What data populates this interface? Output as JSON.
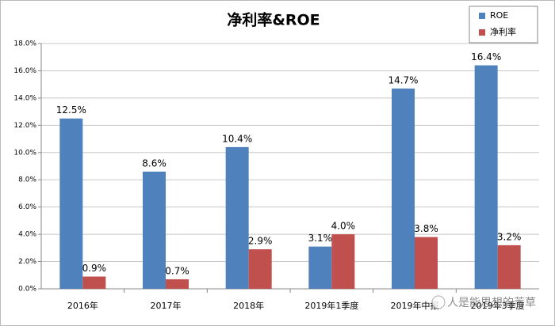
{
  "chart_data": {
    "type": "bar",
    "title": "净利率&ROE",
    "categories": [
      "2016年",
      "2017年",
      "2018年",
      "2019年1季度",
      "2019年中报",
      "2019年3季度"
    ],
    "series": [
      {
        "name": "ROE",
        "color": "#4f81bd",
        "values": [
          12.5,
          8.6,
          10.4,
          3.1,
          14.7,
          16.4
        ],
        "value_labels": [
          "12.5%",
          "8.6%",
          "10.4%",
          "3.1%",
          "14.7%",
          "16.4%"
        ]
      },
      {
        "name": "净利率",
        "color": "#c0504d",
        "values": [
          0.9,
          0.7,
          2.9,
          4.0,
          3.8,
          3.2
        ],
        "value_labels": [
          "0.9%",
          "0.7%",
          "2.9%",
          "4.0%",
          "3.8%",
          "3.2%"
        ]
      }
    ],
    "ylim": [
      0,
      18
    ],
    "yticks": [
      {
        "value": 0,
        "label": "0.0%"
      },
      {
        "value": 2,
        "label": "2.0%"
      },
      {
        "value": 4,
        "label": "4.0%"
      },
      {
        "value": 6,
        "label": "6.0%"
      },
      {
        "value": 8,
        "label": "8.0%"
      },
      {
        "value": 10,
        "label": "10.0%"
      },
      {
        "value": 12,
        "label": "12.0%"
      },
      {
        "value": 14,
        "label": "14.0%"
      },
      {
        "value": 16,
        "label": "16.0%"
      },
      {
        "value": 18,
        "label": "18.0%"
      }
    ],
    "grid": true,
    "legend": "top-right",
    "watermark": "人是能思想的苇草"
  }
}
